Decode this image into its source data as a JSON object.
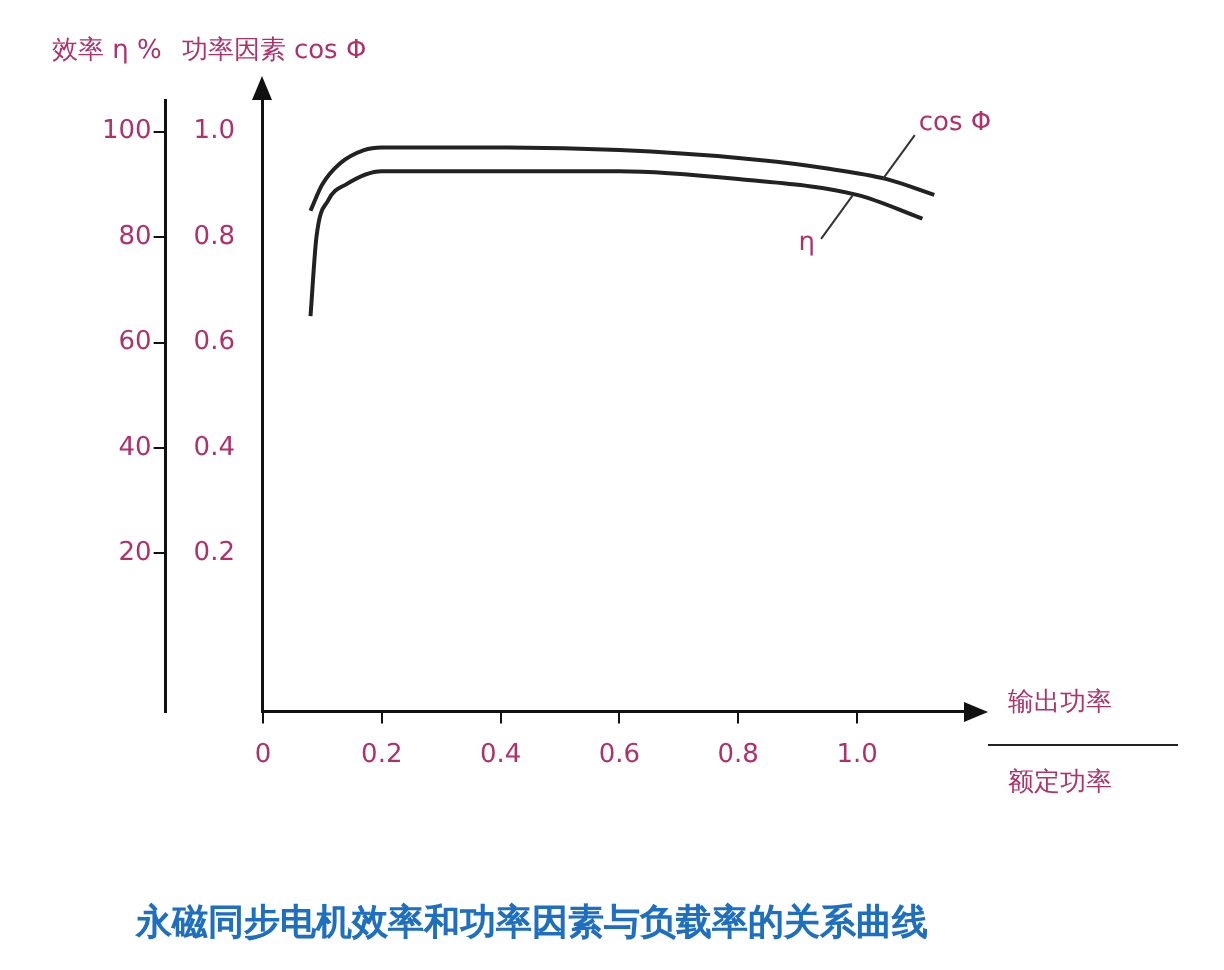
{
  "chart_data": {
    "type": "line",
    "title": "永磁同步电机效率和功率因素与负载率的关系曲线",
    "xlabel": "输出功率",
    "annotations": [
      "额定功率"
    ],
    "ylabel": "效率 η %",
    "y2label": "功率因素 cos Φ",
    "xlim": [
      0,
      1.18
    ],
    "xticks": [
      0,
      0.2,
      0.4,
      0.6,
      0.8,
      {
        "value": 1,
        "label": "1.0"
      }
    ],
    "ylim": [
      -10,
      106
    ],
    "yticks": [
      20,
      40,
      60,
      80,
      100
    ],
    "y2lim": [
      -0.1,
      1.06
    ],
    "y2ticks": [
      0.2,
      0.4,
      0.6,
      0.8,
      {
        "value": 1,
        "label": "1.0"
      }
    ],
    "series": [
      {
        "name": "cos Φ",
        "color": "#222222",
        "axis": "y2",
        "x": [
          0.08,
          0.1,
          0.13,
          0.17,
          0.2,
          0.4,
          0.6,
          0.8,
          0.95,
          1.05,
          1.13
        ],
        "values": [
          0.85,
          0.9,
          0.94,
          0.965,
          0.97,
          0.97,
          0.965,
          0.95,
          0.93,
          0.91,
          0.88
        ]
      },
      {
        "name": "η",
        "color": "#222222",
        "axis": "y",
        "x": [
          0.08,
          0.09,
          0.11,
          0.14,
          0.2,
          0.4,
          0.6,
          0.8,
          1.0,
          1.11
        ],
        "values": [
          65,
          80,
          87,
          90,
          92.5,
          92.5,
          92.5,
          91,
          88,
          83.5
        ]
      }
    ],
    "grid": false,
    "legend": false,
    "marker": "none",
    "line_style": "solid"
  }
}
